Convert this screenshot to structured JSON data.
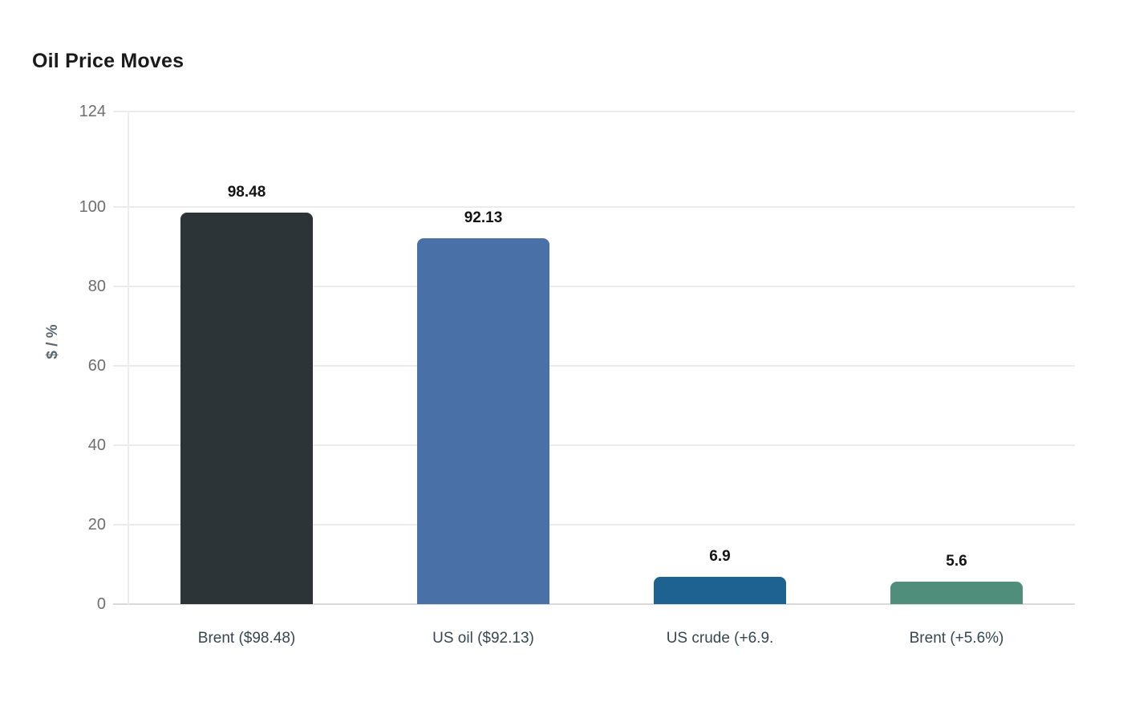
{
  "title": "Oil Price Moves",
  "chart_data": {
    "type": "bar",
    "title": "Oil Price Moves",
    "categories": [
      "Brent ($98.48)",
      "US oil ($92.13)",
      "US crude (+6.9.",
      "Brent (+5.6%)"
    ],
    "values": [
      98.48,
      92.13,
      6.9,
      5.6
    ],
    "value_labels": [
      "98.48",
      "92.13",
      "6.9",
      "5.6"
    ],
    "bar_colors": [
      "#2c3437",
      "#4a70a8",
      "#1d6290",
      "#4e8e7a"
    ],
    "xlabel": "",
    "ylabel": "$ / %",
    "ylim": [
      0,
      124
    ],
    "yticks": [
      0,
      20,
      40,
      60,
      80,
      100,
      124
    ],
    "grid": true,
    "legend": false
  },
  "colors": {
    "background": "#ffffff",
    "title": "#1a1a1a",
    "grid": "#ebebeb",
    "baseline": "#d9d9d9",
    "axis_line": "#ededed",
    "y_tick_label": "#6e6e6e",
    "y_axis_title": "#5c6670",
    "category_label": "#37474f",
    "value_label": "#141414"
  }
}
